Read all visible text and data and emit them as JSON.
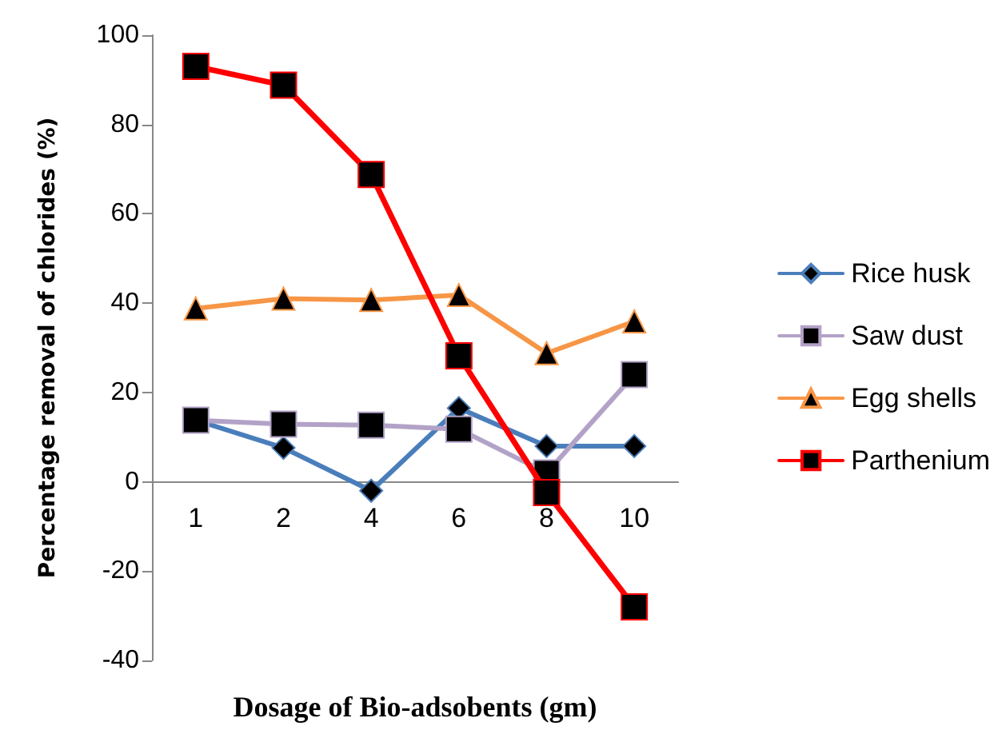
{
  "chart_data": {
    "type": "line",
    "xlabel": "Dosage of Bio-adsobents (gm)",
    "ylabel": "Percentage removal of chlorides (%)",
    "categories": [
      "1",
      "2",
      "4",
      "6",
      "8",
      "10"
    ],
    "series": [
      {
        "name": "Rice husk",
        "color": "#4a7ebb",
        "marker": "diamond",
        "values": [
          13.8,
          7.6,
          -2,
          16.5,
          8,
          8
        ]
      },
      {
        "name": "Saw dust",
        "color": "#b3a2c7",
        "marker": "square",
        "values": [
          13.8,
          12.9,
          12.7,
          11.8,
          2,
          24
        ]
      },
      {
        "name": "Egg shells",
        "color": "#f79646",
        "marker": "triangle",
        "values": [
          38.8,
          41,
          40.7,
          41.8,
          28.8,
          35.9
        ]
      },
      {
        "name": "Parthenium",
        "color": "#ff0000",
        "marker": "square",
        "values": [
          93,
          88.8,
          68.8,
          28.2,
          -2.4,
          -28
        ]
      }
    ],
    "ylim": [
      -40,
      100
    ],
    "yticks": [
      -40,
      -20,
      0,
      20,
      40,
      60,
      80,
      100
    ],
    "grid": false,
    "legend": "right",
    "line_style": "solid"
  }
}
